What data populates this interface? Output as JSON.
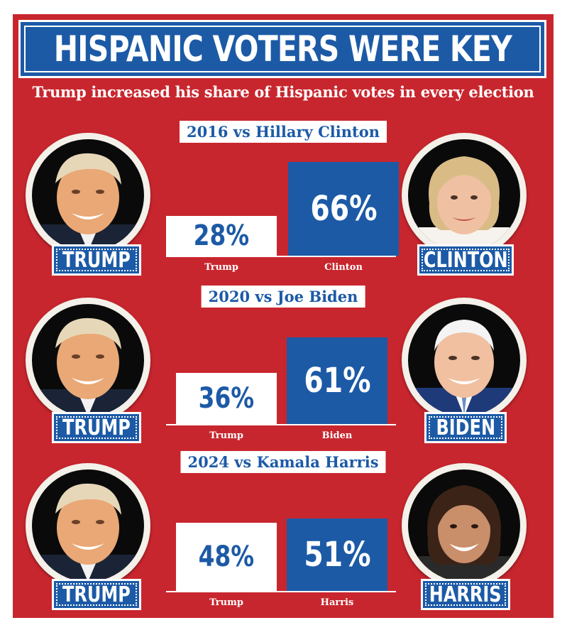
{
  "headline": "HISPANIC VOTERS WERE KEY",
  "subtitle": "Trump increased his share of Hispanic votes in every election",
  "colors": {
    "background": "#c8262e",
    "blue": "#1c5aa6",
    "white": "#ffffff"
  },
  "sections": [
    {
      "title": "2016 vs Hillary Clinton",
      "left_name": "TRUMP",
      "right_name": "CLINTON",
      "trump_label": "Trump",
      "opp_label": "Clinton",
      "trump_pct_text": "28%",
      "opp_pct_text": "66%"
    },
    {
      "title": "2020 vs Joe Biden",
      "left_name": "TRUMP",
      "right_name": "BIDEN",
      "trump_label": "Trump",
      "opp_label": "Biden",
      "trump_pct_text": "36%",
      "opp_pct_text": "61%"
    },
    {
      "title": "2024 vs Kamala Harris",
      "left_name": "TRUMP",
      "right_name": "HARRIS",
      "trump_label": "Trump",
      "opp_label": "Harris",
      "trump_pct_text": "48%",
      "opp_pct_text": "51%"
    }
  ],
  "chart_data": [
    {
      "type": "bar",
      "title": "2016 vs Hillary Clinton",
      "categories": [
        "Trump",
        "Clinton"
      ],
      "values": [
        28,
        66
      ],
      "ylim": [
        0,
        100
      ]
    },
    {
      "type": "bar",
      "title": "2020 vs Joe Biden",
      "categories": [
        "Trump",
        "Biden"
      ],
      "values": [
        36,
        61
      ],
      "ylim": [
        0,
        100
      ]
    },
    {
      "type": "bar",
      "title": "2024 vs Kamala Harris",
      "categories": [
        "Trump",
        "Harris"
      ],
      "values": [
        48,
        51
      ],
      "ylim": [
        0,
        100
      ]
    }
  ]
}
